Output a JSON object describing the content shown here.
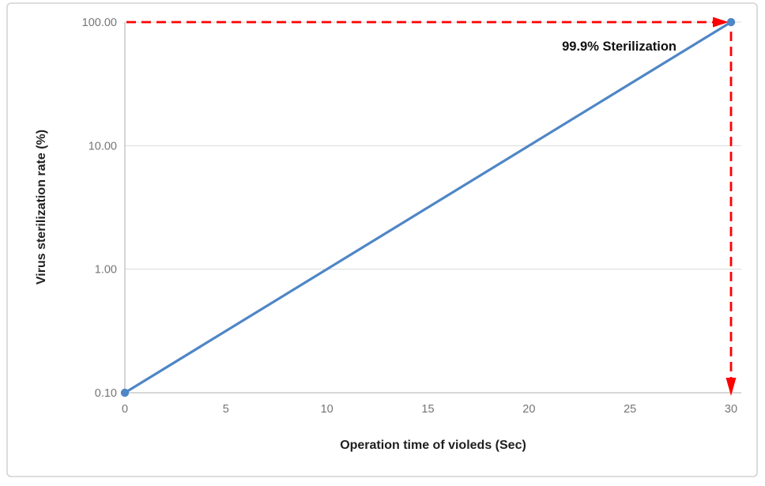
{
  "chart_data": {
    "type": "line",
    "title": "",
    "xlabel": "Operation time of violeds (Sec)",
    "ylabel": "Virus sterilization rate (%)",
    "x_scale": "linear",
    "y_scale": "log",
    "xlim": [
      0,
      30
    ],
    "ylim": [
      0.1,
      100
    ],
    "x_ticks": [
      0,
      5,
      10,
      15,
      20,
      25,
      30
    ],
    "x_tick_labels": [
      "0",
      "5",
      "10",
      "15",
      "20",
      "25",
      "30"
    ],
    "y_ticks": [
      0.1,
      1,
      10,
      100
    ],
    "y_tick_labels": [
      "0.10",
      "1.00",
      "10.00",
      "100.00"
    ],
    "grid": "horizontal-major-only",
    "legend": "none",
    "series": [
      {
        "name": "Virus sterilization rate",
        "x": [
          0,
          30
        ],
        "y": [
          0.1,
          100
        ],
        "color": "#4f86c6",
        "marker": "circle"
      }
    ],
    "annotations": [
      {
        "text": "99.9% Sterilization",
        "anchor_x": 30,
        "anchor_y": 100
      }
    ],
    "callout": {
      "description": "dashed red arrows from y-axis at 100 to point (30,100) and down to x-axis at 30",
      "y_value": 100,
      "x_value": 30
    },
    "colors": {
      "line": "#4f86c6",
      "marker": "#4f86c6",
      "callout": "#ff0000",
      "grid": "#d9d9d9",
      "axis": "#bfbfbf",
      "tick_text": "#757575",
      "title_text": "#1f1f1f",
      "frame_border": "#d3d3d3",
      "background": "#ffffff"
    }
  }
}
